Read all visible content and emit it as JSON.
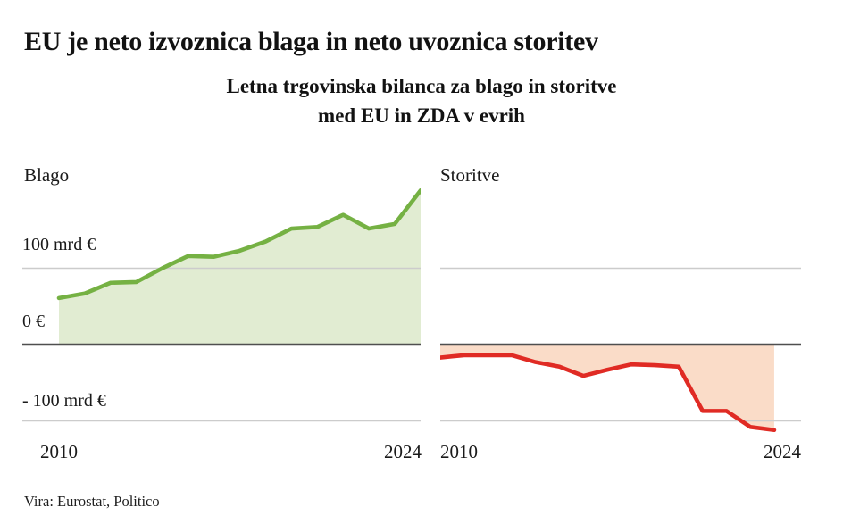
{
  "title": "EU je neto izvoznica blaga in neto uvoznica storitev",
  "subtitle_line1": "Letna trgovinska bilanca za blago in storitve",
  "subtitle_line2": "med EU in ZDA v evrih",
  "source": "Vira: Eurostat, Politico",
  "y_axis": {
    "label_100": "100 mrd €",
    "label_0": "0 €",
    "label_neg100": "- 100 mrd €"
  },
  "colors": {
    "gridline": "#cccccc",
    "baseline": "#4f4f4f",
    "text": "#141414",
    "goods_line": "#75b143",
    "goods_fill": "#e1ecd2",
    "services_line": "#e02b24",
    "services_fill": "#fadcc8"
  },
  "chart_data": [
    {
      "type": "area",
      "title": "Blago",
      "unit": "mrd €",
      "x": [
        2010,
        2011,
        2012,
        2013,
        2014,
        2015,
        2016,
        2017,
        2018,
        2019,
        2020,
        2021,
        2022,
        2023,
        2024
      ],
      "values": [
        61,
        67,
        81,
        82,
        100,
        116,
        115,
        123,
        135,
        152,
        154,
        170,
        152,
        158,
        202
      ],
      "x_first": "2010",
      "x_last": "2024",
      "ylim": [
        -130,
        215
      ],
      "gridlines": [
        100,
        0,
        -100
      ],
      "legend": "none",
      "line_color": "#75b143",
      "fill_color": "#e1ecd2"
    },
    {
      "type": "area",
      "title": "Storitve",
      "unit": "mrd €",
      "x": [
        2010,
        2011,
        2012,
        2013,
        2014,
        2015,
        2016,
        2017,
        2018,
        2019,
        2020,
        2021,
        2022,
        2023,
        2024
      ],
      "values": [
        -17,
        -14,
        -14,
        -14,
        -23,
        -29,
        -41,
        -33,
        -26,
        -27,
        -29,
        -87,
        -87,
        -108,
        -112
      ],
      "x_first": "2010",
      "x_last": "2024",
      "ylim": [
        -130,
        215
      ],
      "gridlines": [
        100,
        0,
        -100
      ],
      "legend": "none",
      "line_color": "#e02b24",
      "fill_color": "#fadcc8"
    }
  ]
}
